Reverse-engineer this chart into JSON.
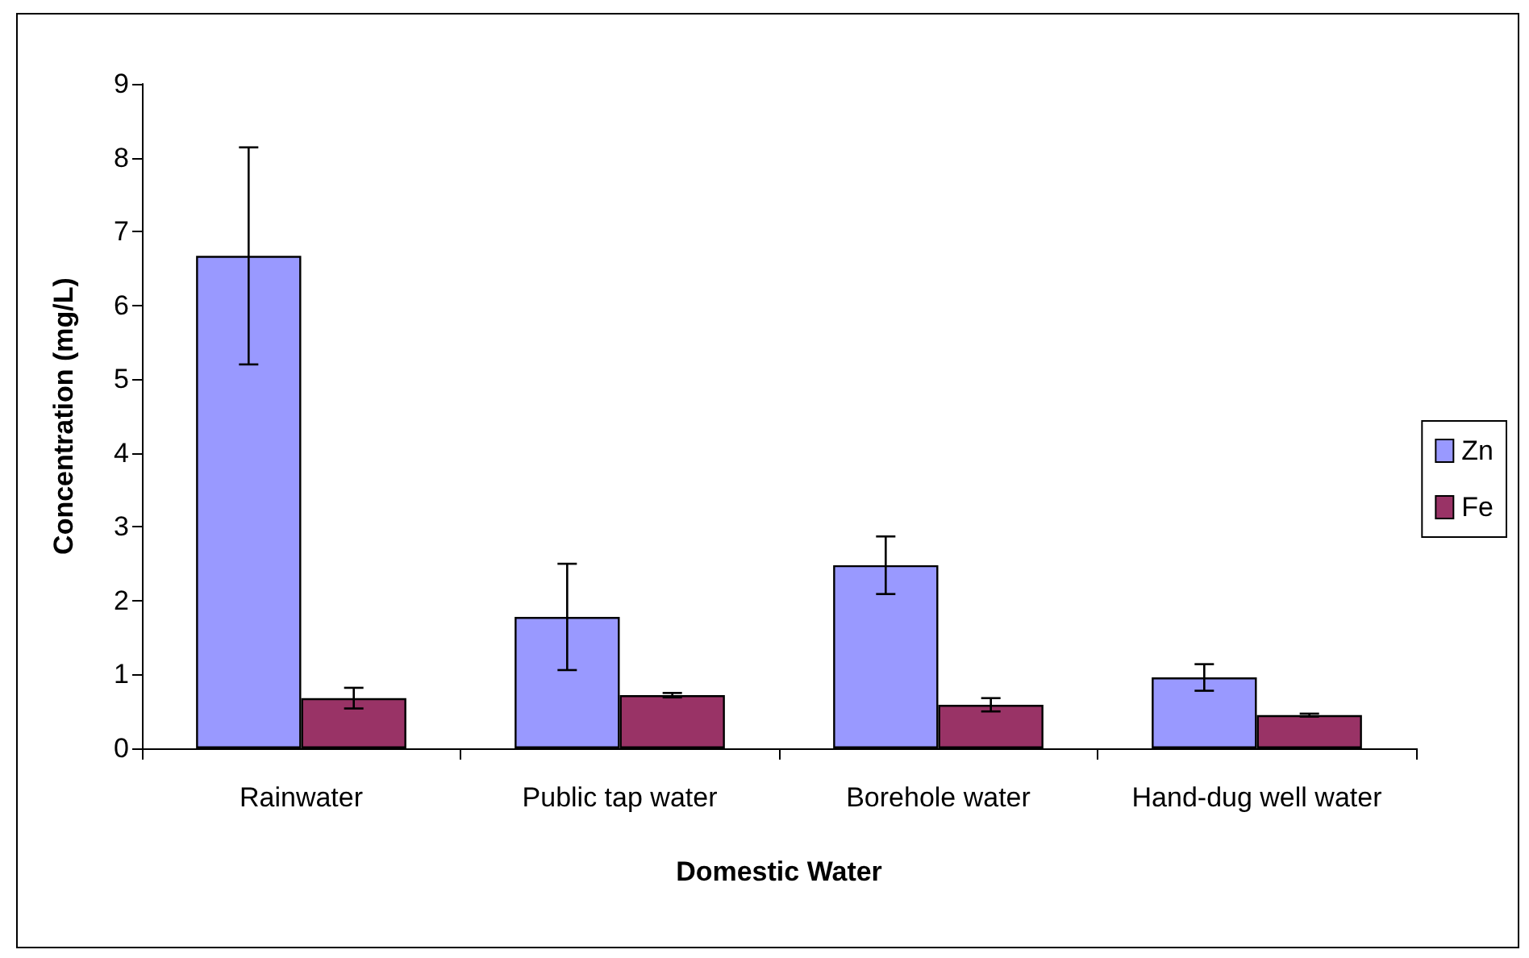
{
  "chart_data": {
    "type": "bar",
    "xlabel": "Domestic Water",
    "ylabel": "Concentration (mg/L)",
    "categories": [
      "Rainwater",
      "Public tap water",
      "Borehole water",
      "Hand-dug well water"
    ],
    "series": [
      {
        "name": "Zn",
        "color": "#9999ff",
        "values": [
          6.67,
          1.78,
          2.48,
          0.96
        ],
        "errors": [
          1.47,
          0.72,
          0.39,
          0.18
        ]
      },
      {
        "name": "Fe",
        "color": "#993366",
        "values": [
          0.68,
          0.72,
          0.59,
          0.45
        ],
        "errors": [
          0.14,
          0.03,
          0.09,
          0.02
        ]
      }
    ],
    "ylim": [
      0,
      9
    ],
    "yticks": [
      0,
      1,
      2,
      3,
      4,
      5,
      6,
      7,
      8,
      9
    ],
    "grid": false,
    "legend": "right"
  }
}
